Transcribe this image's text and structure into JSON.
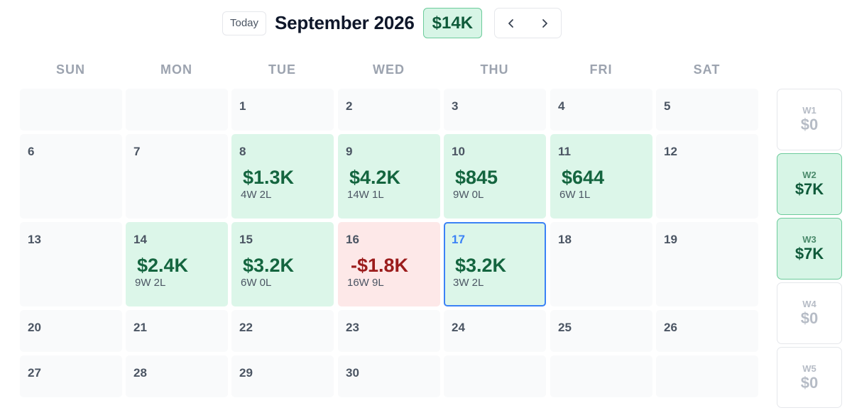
{
  "header": {
    "today_label": "Today",
    "month_title": "September 2026",
    "month_total": "$14K"
  },
  "weekdays": [
    "SUN",
    "MON",
    "TUE",
    "WED",
    "THU",
    "FRI",
    "SAT"
  ],
  "weeks": [
    [
      {
        "day": ""
      },
      {
        "day": ""
      },
      {
        "day": "1"
      },
      {
        "day": "2"
      },
      {
        "day": "3"
      },
      {
        "day": "4"
      },
      {
        "day": "5"
      }
    ],
    [
      {
        "day": "6"
      },
      {
        "day": "7"
      },
      {
        "day": "8",
        "pnl": "$1.3K",
        "record": "4W 2L",
        "status": "profit"
      },
      {
        "day": "9",
        "pnl": "$4.2K",
        "record": "14W 1L",
        "status": "profit"
      },
      {
        "day": "10",
        "pnl": "$845",
        "record": "9W 0L",
        "status": "profit"
      },
      {
        "day": "11",
        "pnl": "$644",
        "record": "6W 1L",
        "status": "profit"
      },
      {
        "day": "12"
      }
    ],
    [
      {
        "day": "13"
      },
      {
        "day": "14",
        "pnl": "$2.4K",
        "record": "9W 2L",
        "status": "profit"
      },
      {
        "day": "15",
        "pnl": "$3.2K",
        "record": "6W 0L",
        "status": "profit"
      },
      {
        "day": "16",
        "pnl": "-$1.8K",
        "record": "16W 9L",
        "status": "loss"
      },
      {
        "day": "17",
        "pnl": "$3.2K",
        "record": "3W 2L",
        "status": "profit",
        "selected": true
      },
      {
        "day": "18"
      },
      {
        "day": "19"
      }
    ],
    [
      {
        "day": "20"
      },
      {
        "day": "21"
      },
      {
        "day": "22"
      },
      {
        "day": "23"
      },
      {
        "day": "24"
      },
      {
        "day": "25"
      },
      {
        "day": "26"
      }
    ],
    [
      {
        "day": "27"
      },
      {
        "day": "28"
      },
      {
        "day": "29"
      },
      {
        "day": "30"
      },
      {
        "day": ""
      },
      {
        "day": ""
      },
      {
        "day": ""
      }
    ]
  ],
  "week_totals": [
    {
      "label": "W1",
      "total": "$0",
      "positive": false
    },
    {
      "label": "W2",
      "total": "$7K",
      "positive": true
    },
    {
      "label": "W3",
      "total": "$7K",
      "positive": true
    },
    {
      "label": "W4",
      "total": "$0",
      "positive": false
    },
    {
      "label": "W5",
      "total": "$0",
      "positive": false
    }
  ],
  "colors": {
    "profit_bg": "#dcf6e9",
    "profit_text": "#14653f",
    "loss_bg": "#fde8e8",
    "loss_text": "#9b1c1c",
    "selected_border": "#3b82f6",
    "empty_cell": "#f9fafb"
  },
  "icons": {
    "prev": "chevron-left-icon",
    "next": "chevron-right-icon"
  }
}
